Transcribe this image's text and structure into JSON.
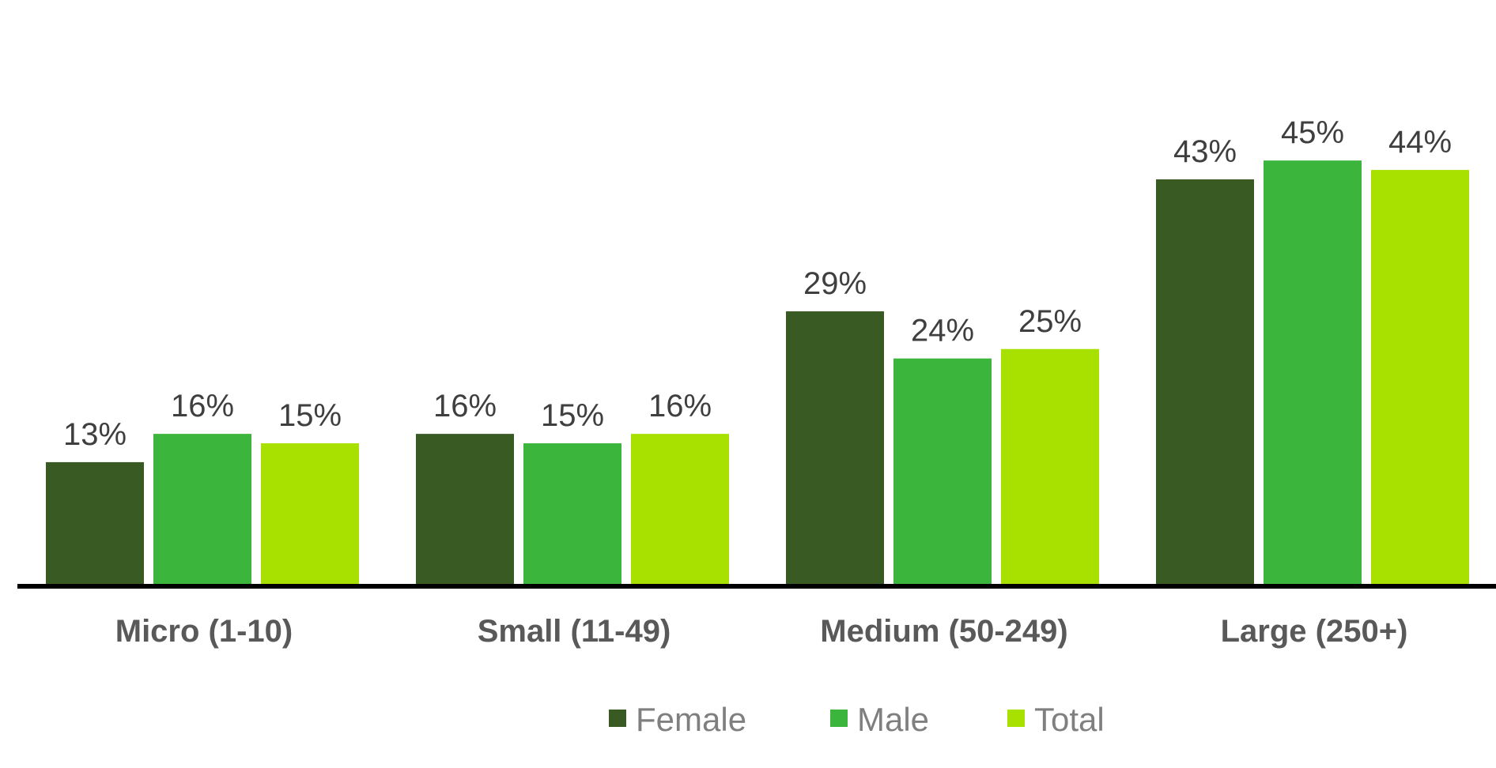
{
  "chart_data": {
    "type": "bar",
    "title": "",
    "xlabel": "",
    "ylabel": "",
    "ylim": [
      0,
      50
    ],
    "grid": false,
    "legend_position": "bottom",
    "categories": [
      "Micro (1-10)",
      "Small (11-49)",
      "Medium (50-249)",
      "Large (250+)"
    ],
    "series": [
      {
        "name": "Female",
        "color": "#3a5a24",
        "values": [
          13,
          16,
          29,
          43
        ],
        "labels": [
          "13%",
          "16%",
          "29%",
          "43%"
        ]
      },
      {
        "name": "Male",
        "color": "#3cb53c",
        "values": [
          16,
          15,
          24,
          45
        ],
        "labels": [
          "16%",
          "15%",
          "24%",
          "45%"
        ]
      },
      {
        "name": "Total",
        "color": "#a8e000",
        "values": [
          15,
          16,
          25,
          44
        ],
        "labels": [
          "15%",
          "16%",
          "25%",
          "44%"
        ]
      }
    ]
  }
}
